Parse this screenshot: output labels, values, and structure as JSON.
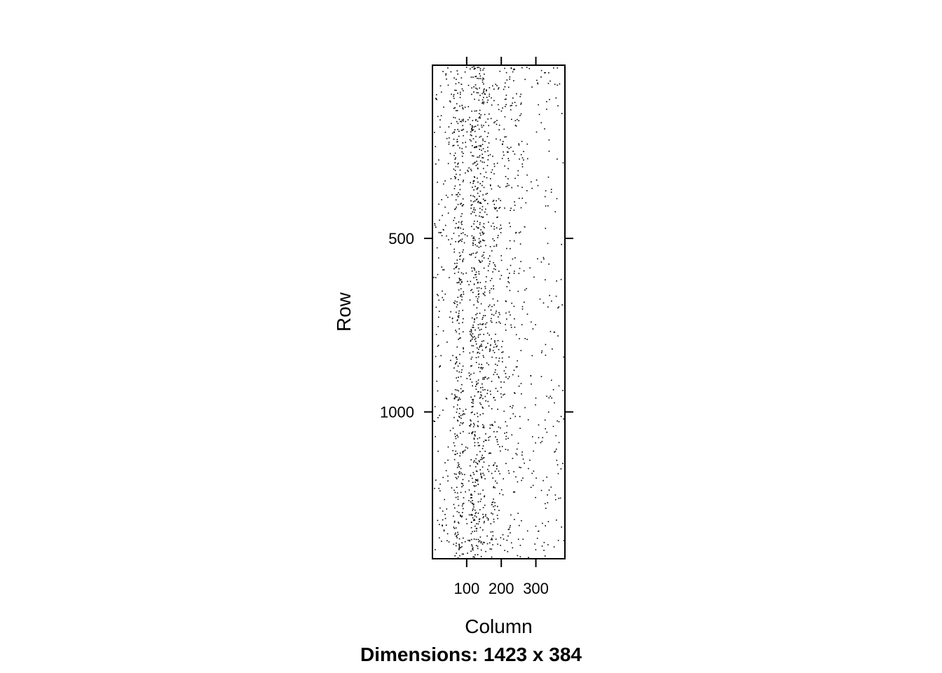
{
  "chart_data": {
    "type": "scatter",
    "subtitle": "Dimensions: 1423 x 384",
    "xlabel": "Column",
    "ylabel": "Row",
    "xlim": [
      1,
      384
    ],
    "ylim": [
      1,
      1423
    ],
    "y_reversed": true,
    "x_ticks": [
      {
        "value": 100,
        "label": "100"
      },
      {
        "value": 200,
        "label": "200"
      },
      {
        "value": 300,
        "label": "300"
      }
    ],
    "y_ticks": [
      {
        "value": 500,
        "label": "500"
      },
      {
        "value": 1000,
        "label": "1000"
      }
    ],
    "grid": false,
    "legend": "none",
    "point_color": "#000000",
    "density_profile": [
      {
        "col_start": 1,
        "col_end": 60,
        "weight": 1.0
      },
      {
        "col_start": 60,
        "col_end": 90,
        "weight": 5.0
      },
      {
        "col_start": 90,
        "col_end": 110,
        "weight": 1.2
      },
      {
        "col_start": 110,
        "col_end": 150,
        "weight": 6.0
      },
      {
        "col_start": 150,
        "col_end": 190,
        "weight": 2.5
      },
      {
        "col_start": 190,
        "col_end": 260,
        "weight": 1.5
      },
      {
        "col_start": 260,
        "col_end": 384,
        "weight": 0.6
      }
    ],
    "approx_nonzero_count": 1900
  }
}
